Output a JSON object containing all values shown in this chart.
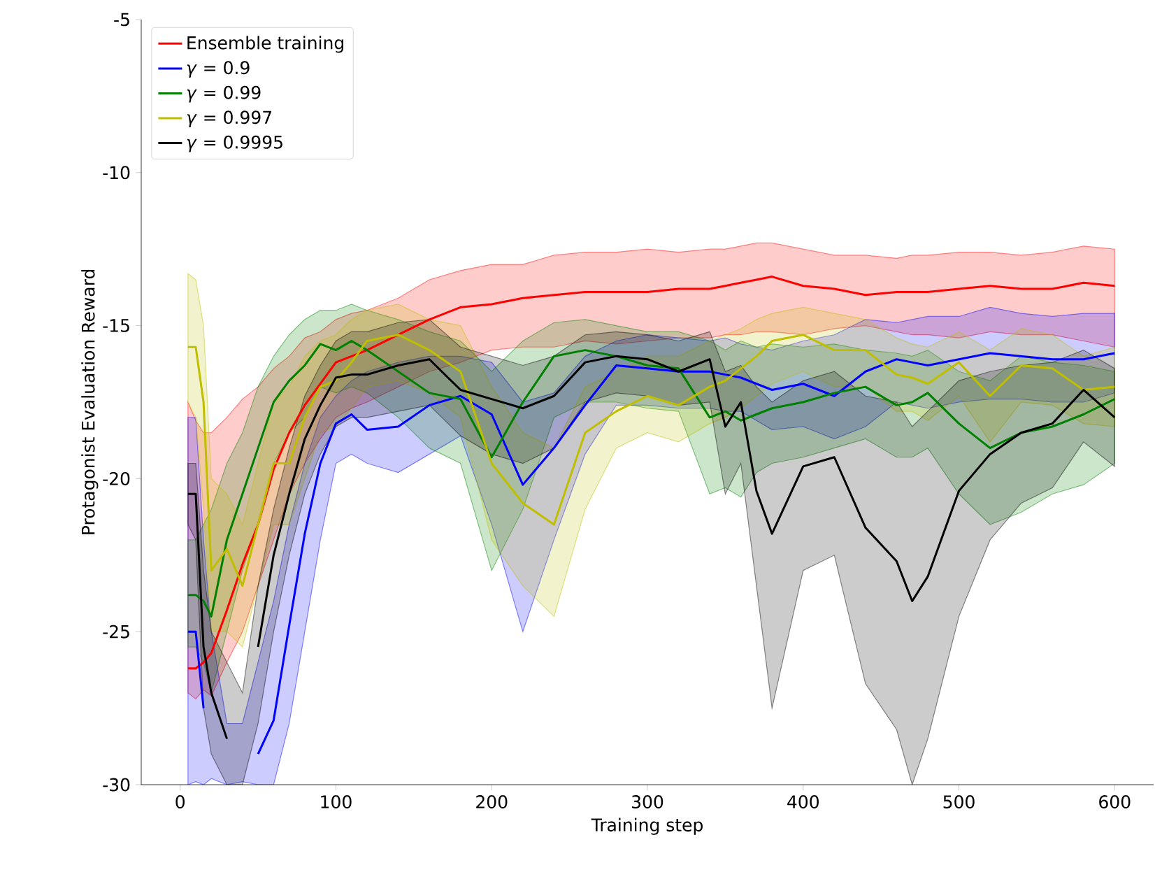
{
  "chart_data": {
    "type": "line",
    "xlabel": "Training step",
    "ylabel": "Protagonist Evaluation Reward",
    "x": [
      5,
      10,
      15,
      20,
      30,
      40,
      50,
      60,
      70,
      80,
      90,
      100,
      110,
      120,
      140,
      160,
      180,
      200,
      220,
      240,
      260,
      280,
      300,
      320,
      340,
      350,
      360,
      370,
      380,
      400,
      420,
      440,
      460,
      470,
      480,
      500,
      520,
      540,
      560,
      580,
      600
    ],
    "xlim": [
      -25,
      625
    ],
    "ylim": [
      -30,
      -5
    ],
    "xticks": [
      0,
      100,
      200,
      300,
      400,
      500,
      600
    ],
    "yticks": [
      -30,
      -25,
      -20,
      -15,
      -10,
      -5
    ],
    "legend": "top left",
    "marker": "none",
    "line_style": "solid",
    "grid": false,
    "series": [
      {
        "name": "Ensemble training",
        "color": "#ff0000",
        "values": [
          -26.2,
          -26.2,
          -26.0,
          -25.7,
          -24.3,
          -22.8,
          -21.5,
          -19.7,
          -18.5,
          -17.6,
          -16.9,
          -16.2,
          -16.0,
          -15.8,
          -15.3,
          -14.8,
          -14.4,
          -14.3,
          -14.1,
          -14.0,
          -13.9,
          -13.9,
          -13.9,
          -13.8,
          -13.8,
          -13.7,
          -13.6,
          -13.5,
          -13.4,
          -13.7,
          -13.8,
          -14.0,
          -13.9,
          -13.9,
          -13.9,
          -13.8,
          -13.7,
          -13.8,
          -13.8,
          -13.6,
          -13.7
        ],
        "upper": [
          -17.5,
          -18.1,
          -18.5,
          -18.5,
          -18,
          -17.4,
          -17,
          -16.4,
          -16,
          -15.4,
          -15.2,
          -14.8,
          -14.6,
          -14.5,
          -14.1,
          -13.5,
          -13.2,
          -13,
          -13.0,
          -12.7,
          -12.6,
          -12.6,
          -12.5,
          -12.6,
          -12.5,
          -12.5,
          -12.4,
          -12.3,
          -12.3,
          -12.5,
          -12.7,
          -12.7,
          -12.8,
          -12.7,
          -12.7,
          -12.6,
          -12.6,
          -12.7,
          -12.6,
          -12.4,
          -12.5
        ],
        "lower": [
          -27,
          -27.2,
          -26.9,
          -27.1,
          -26,
          -25,
          -23.5,
          -22,
          -20.5,
          -19.5,
          -18.7,
          -18,
          -17.7,
          -17.5,
          -17,
          -16.5,
          -16.2,
          -15.8,
          -15.7,
          -15.7,
          -15.5,
          -15.6,
          -15.5,
          -15.4,
          -15.4,
          -15.3,
          -15.3,
          -15.2,
          -15.2,
          -15.3,
          -15.1,
          -15.0,
          -15.2,
          -15.3,
          -15.3,
          -15.4,
          -15.2,
          -15.3,
          -15.3,
          -15.5,
          -15.7
        ]
      },
      {
        "name": "*γ* = 0.9",
        "color": "#0000ff",
        "values": [
          -25,
          -25,
          -27.5,
          null,
          null,
          null,
          -29,
          -27.9,
          -24.8,
          -21.8,
          -19.5,
          -18.2,
          -17.9,
          -18.4,
          -18.3,
          -17.6,
          -17.3,
          -17.9,
          -20.2,
          -19.0,
          -17.6,
          -16.3,
          -16.4,
          -16.5,
          -16.5,
          -16.6,
          -16.7,
          -16.9,
          -17.1,
          -16.9,
          -17.3,
          -16.5,
          -16.1,
          -16.2,
          -16.3,
          -16.1,
          -15.9,
          -16.0,
          -16.1,
          -16.1,
          -15.9
        ],
        "upper": [
          -18,
          -18,
          -22,
          -25,
          -28,
          -28,
          -26,
          -24,
          -21.5,
          -19.5,
          -18,
          -17.3,
          -16.8,
          -16.5,
          -16.2,
          -16,
          -16,
          -16.2,
          -17.5,
          -17.2,
          -16,
          -15.5,
          -15.3,
          -15.4,
          -15.5,
          -15.4,
          -15.6,
          -15.7,
          -15.8,
          -15.5,
          -15.3,
          -14.8,
          -14.9,
          -14.8,
          -14.7,
          -14.7,
          -14.4,
          -14.6,
          -14.7,
          -14.6,
          -14.6
        ],
        "lower": [
          -30,
          -29.9,
          -30,
          -29.8,
          -30,
          -29.9,
          -30,
          -30,
          -28,
          -25,
          -22,
          -19.5,
          -19.2,
          -19.5,
          -19.8,
          -19.2,
          -18.6,
          -21.5,
          -25,
          -22,
          -19.2,
          -17.6,
          -17.6,
          -17.7,
          -17.7,
          -17.8,
          -17.8,
          -18.1,
          -18.4,
          -18.3,
          -18.7,
          -18.3,
          -17.5,
          -17.6,
          -17.7,
          -17.5,
          -17.4,
          -17.4,
          -17.5,
          -17.5,
          -17.2
        ]
      },
      {
        "name": "*γ* = 0.99",
        "color": "#008000",
        "values": [
          -23.8,
          -23.8,
          -24,
          -24.5,
          -22,
          -20.5,
          -19,
          -17.5,
          -16.8,
          -16.3,
          -15.6,
          -15.8,
          -15.5,
          -15.8,
          -16.5,
          -17.2,
          -17.4,
          -19.3,
          -17.5,
          -16.0,
          -15.8,
          -16.0,
          -16.3,
          -16.4,
          -18.0,
          -17.8,
          -18.1,
          -17.9,
          -17.7,
          -17.5,
          -17.2,
          -17.0,
          -17.6,
          -17.5,
          -17.2,
          -18.2,
          -19.0,
          -18.5,
          -18.3,
          -17.9,
          -17.4
        ],
        "upper": [
          -22,
          -22,
          -21.5,
          -21,
          -19.5,
          -18.5,
          -17,
          -16,
          -15.3,
          -14.8,
          -14.5,
          -14.5,
          -14.3,
          -14.5,
          -14.8,
          -15.2,
          -15.5,
          -16.5,
          -15.5,
          -14.9,
          -14.8,
          -15.0,
          -15.2,
          -15.2,
          -15.5,
          -15.8,
          -15.5,
          -15.7,
          -15.6,
          -15.7,
          -15.6,
          -15.8,
          -15.9,
          -16,
          -15.8,
          -16.5,
          -16.8,
          -16.0,
          -16.2,
          -16.3,
          -16.5
        ],
        "lower": [
          -25.5,
          -25.5,
          -26,
          -27,
          -25,
          -23,
          -21.5,
          -19.5,
          -18.5,
          -18,
          -17,
          -17.2,
          -17,
          -17.2,
          -18,
          -19,
          -19.5,
          -23,
          -21,
          -18,
          -17.5,
          -17.5,
          -17.7,
          -17.8,
          -20.5,
          -20.3,
          -20.6,
          -19.8,
          -19.5,
          -19.3,
          -19,
          -18.7,
          -19.3,
          -19.3,
          -19,
          -20.5,
          -21.5,
          -21.1,
          -20.5,
          -20.2,
          -19.5
        ]
      },
      {
        "name": "*γ* = 0.997",
        "color": "#bfbf00",
        "values": [
          -15.7,
          -15.7,
          -17.5,
          -23,
          -22.3,
          -23.5,
          -21.5,
          -19.5,
          -19.5,
          -18,
          -17,
          -16.8,
          -16.2,
          -15.5,
          -15.3,
          -15.8,
          -16.5,
          -19.5,
          -20.8,
          -21.5,
          -18.5,
          -17.8,
          -17.3,
          -17.6,
          -17.0,
          -16.8,
          -16.4,
          -16.0,
          -15.5,
          -15.3,
          -15.8,
          -15.8,
          -16.6,
          -16.7,
          -16.9,
          -16.2,
          -17.3,
          -16.3,
          -16.4,
          -17.1,
          -17.0
        ],
        "upper": [
          -13.3,
          -13.5,
          -15,
          -20,
          -20.5,
          -21.5,
          -19.5,
          -17.5,
          -17,
          -16,
          -15.5,
          -15.3,
          -14.8,
          -14.5,
          -14.3,
          -14.8,
          -15,
          -17,
          -18.5,
          -19,
          -17,
          -16.5,
          -16.0,
          -16.0,
          -15.5,
          -15.3,
          -15.1,
          -14.8,
          -14.6,
          -14.4,
          -14.6,
          -14.8,
          -15.4,
          -15.6,
          -15.7,
          -15.2,
          -15.8,
          -15.1,
          -15.3,
          -16.0,
          -15.7
        ],
        "lower": [
          -17.5,
          -18,
          -21,
          -25,
          -25,
          -25.5,
          -23.5,
          -21.5,
          -21.5,
          -20,
          -18.5,
          -18.3,
          -17.7,
          -17,
          -16.8,
          -17.2,
          -18,
          -22,
          -23.5,
          -24.5,
          -21,
          -19,
          -18.5,
          -18.8,
          -18.2,
          -18.0,
          -17.7,
          -17.3,
          -16.9,
          -16.5,
          -17.0,
          -17.0,
          -17.8,
          -17.8,
          -18.1,
          -17.3,
          -18.8,
          -17.5,
          -17.6,
          -18.2,
          -18.3
        ]
      },
      {
        "name": "*γ* = 0.9995",
        "color": "#000000",
        "values": [
          -20.5,
          -20.5,
          -25.5,
          -27,
          -28.5,
          null,
          -25.5,
          -22.5,
          -20.5,
          -18.7,
          -17.6,
          -16.7,
          -16.6,
          -16.6,
          -16.3,
          -16.1,
          -17.1,
          -17.4,
          -17.7,
          -17.3,
          -16.2,
          -16.0,
          -16.1,
          -16.5,
          -16.1,
          -18.3,
          -17.5,
          -20.4,
          -21.8,
          -19.6,
          -19.3,
          -21.6,
          -22.7,
          -24.0,
          -23.2,
          -20.4,
          -19.2,
          -18.5,
          -18.2,
          -17.1,
          -18.0
        ],
        "upper": [
          -19.5,
          -19.5,
          -23,
          -25,
          -26,
          -27,
          -23.5,
          -21,
          -19,
          -17.3,
          -16.3,
          -15.5,
          -15.2,
          -15.2,
          -14.9,
          -14.8,
          -15.7,
          -16,
          -16.3,
          -16,
          -15.3,
          -15.2,
          -15.3,
          -15.5,
          -15.2,
          -16.5,
          -16.3,
          -17,
          -17.5,
          -16.8,
          -16.5,
          -17.3,
          -17.5,
          -18.3,
          -17.8,
          -16.8,
          -16.5,
          -16.3,
          -16.2,
          -15.8,
          -16.4
        ],
        "lower": [
          -21.5,
          -22,
          -27.5,
          -29,
          -30,
          -30,
          -28,
          -25,
          -22.5,
          -20.5,
          -19.2,
          -18.3,
          -18,
          -18,
          -17.8,
          -17.6,
          -18.6,
          -19.2,
          -19.5,
          -19,
          -17.5,
          -17.2,
          -17.3,
          -17.6,
          -17.5,
          -20.5,
          -19.5,
          -23.5,
          -27.5,
          -23,
          -22.5,
          -26.7,
          -28.2,
          -30,
          -28.5,
          -24.5,
          -22,
          -20.8,
          -20.3,
          -18.8,
          -19.6
        ]
      }
    ]
  }
}
